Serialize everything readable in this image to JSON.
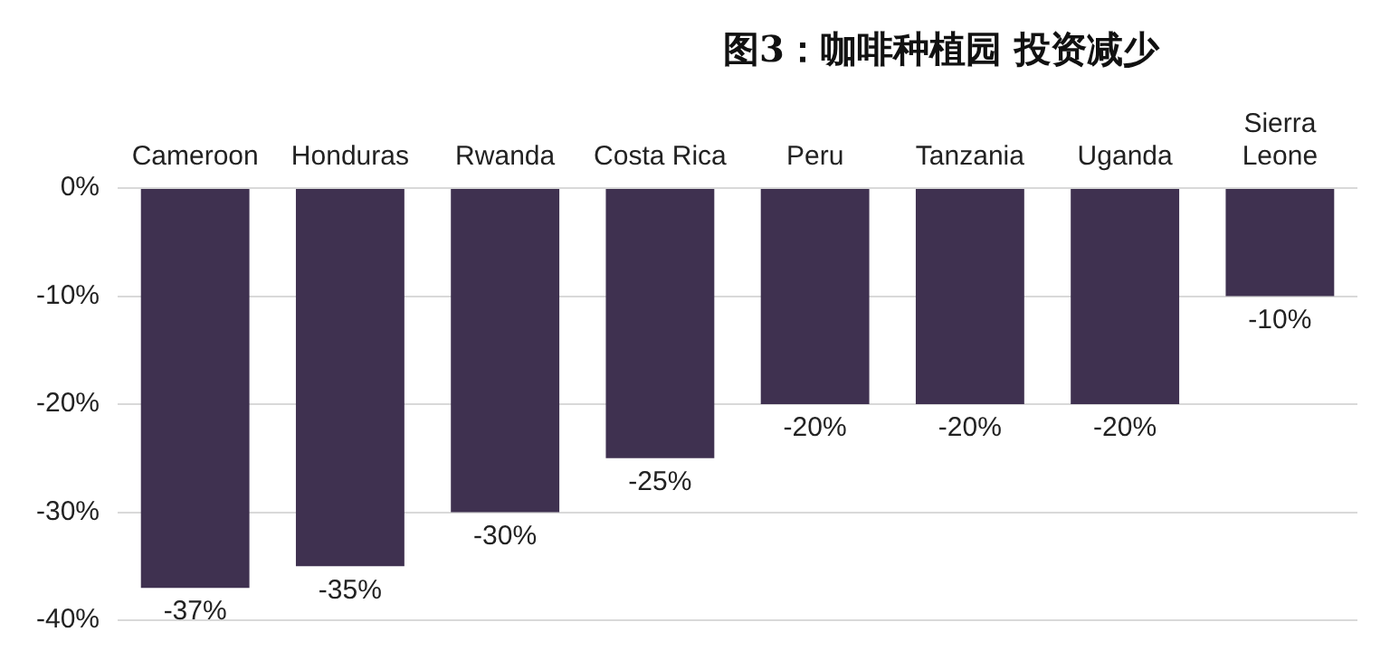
{
  "chart_data": {
    "type": "bar",
    "title": "图3：咖啡种植园 投资减少",
    "categories": [
      "Cameroon",
      "Honduras",
      "Rwanda",
      "Costa Rica",
      "Peru",
      "Tanzania",
      "Uganda",
      "Sierra Leone"
    ],
    "values": [
      -37,
      -35,
      -30,
      -25,
      -20,
      -20,
      -20,
      -10
    ],
    "color": "#3f3150",
    "value_labels": [
      "-37%",
      "-35%",
      "-30%",
      "-25%",
      "-20%",
      "-20%",
      "-20%",
      "-10%"
    ],
    "ylim": [
      -40,
      0
    ],
    "yticks": [
      {
        "value": 0,
        "label": "0%"
      },
      {
        "value": -10,
        "label": "-10%"
      },
      {
        "value": -20,
        "label": "-20%"
      },
      {
        "value": -30,
        "label": "-30%"
      },
      {
        "value": -40,
        "label": "-40%"
      }
    ],
    "grid": "y"
  }
}
